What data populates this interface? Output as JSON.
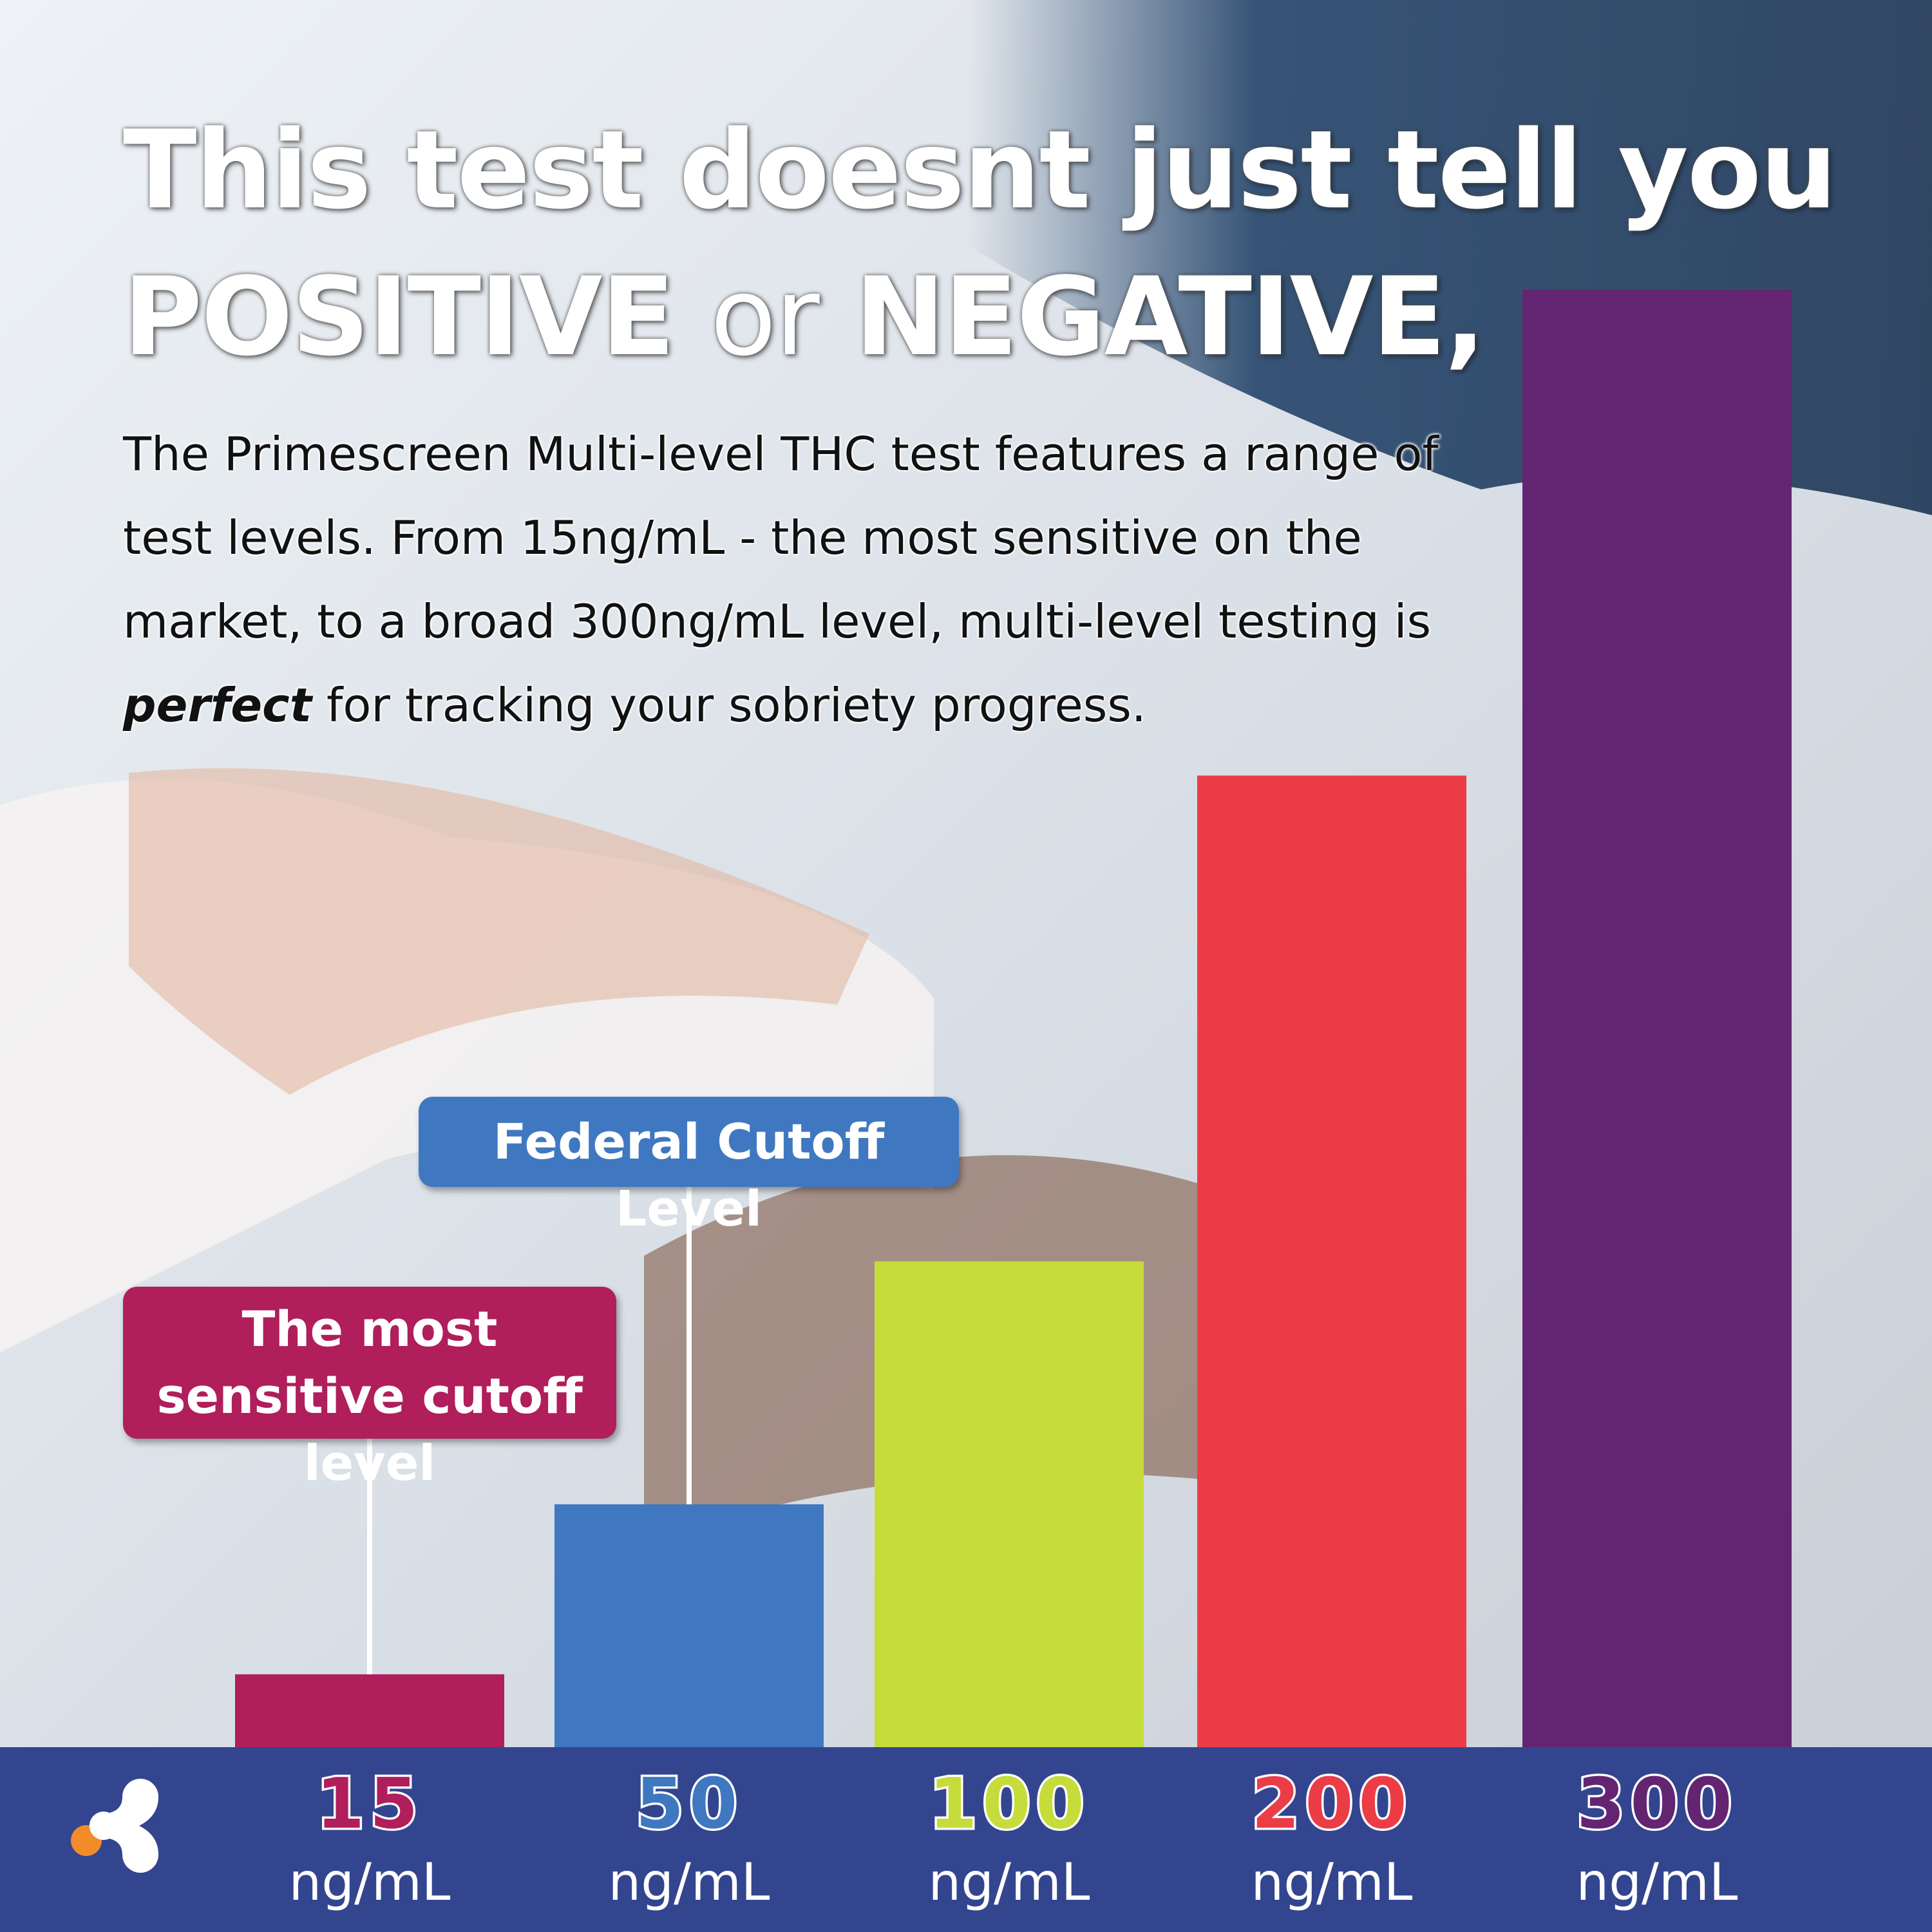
{
  "chart_data": {
    "type": "bar",
    "title_line1": "This test doesnt just tell you",
    "title_line2": [
      "POSITIVE",
      "or",
      "NEGATIVE,"
    ],
    "body": [
      "The Primescreen Multi-level THC test features a range of test levels. From 15ng/mL - the most sensitive on the market, to a broad 300ng/mL level, multi-level testing is",
      "perfect",
      "for tracking your sobriety progress."
    ],
    "values": [
      15,
      50,
      100,
      200,
      300
    ],
    "unit": "ng/mL",
    "colors": [
      "#b01e5c",
      "#3f78c0",
      "#c5dc3a",
      "#ec3d47",
      "#632572"
    ],
    "annotations": [
      {
        "text": "The most sensitive cutoff level",
        "color": "#b01e5c"
      },
      {
        "text": "Federal Cutoff Level",
        "color": "#3f78c0"
      }
    ]
  }
}
